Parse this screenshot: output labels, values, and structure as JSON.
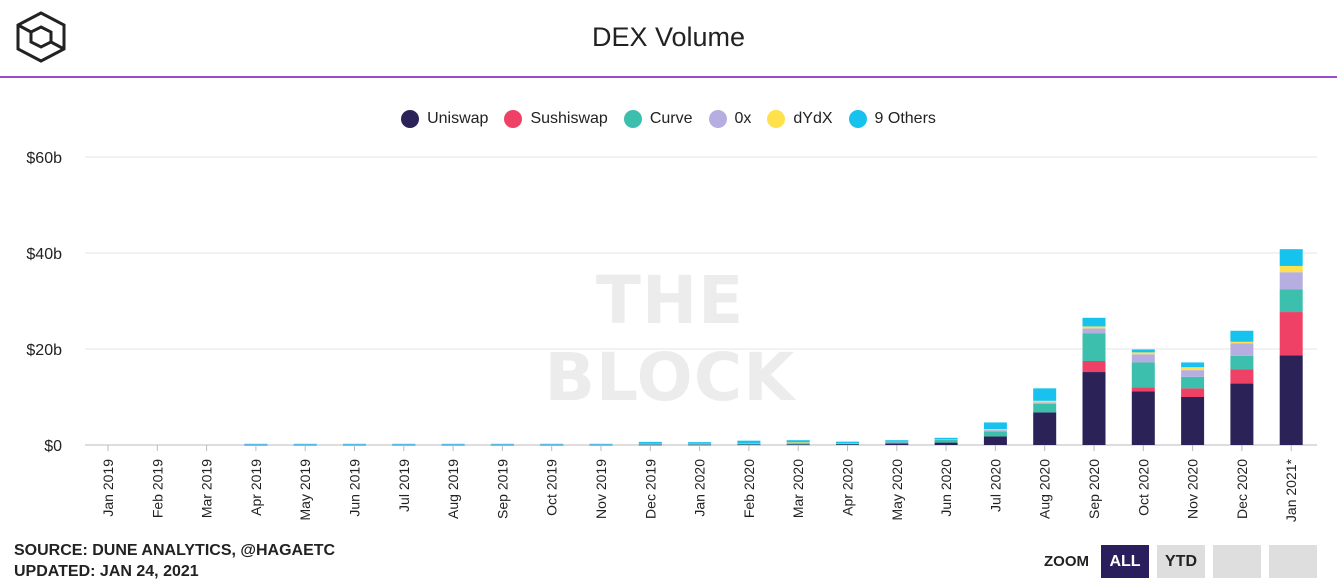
{
  "header": {
    "title": "DEX Volume",
    "logo_icon": "the-block-cube-icon"
  },
  "watermark": "THE BLOCK",
  "colors": {
    "Uniswap": "#2b2257",
    "Sushiswap": "#ef4166",
    "Curve": "#3dbfae",
    "0x": "#b6aee0",
    "dYdX": "#ffe14d",
    "9 Others": "#17c3ee",
    "accent_line": "#9b4dca"
  },
  "chart_data": {
    "type": "bar",
    "stacked": true,
    "title": "DEX Volume",
    "xlabel": "",
    "ylabel": "",
    "ylim": [
      0,
      60
    ],
    "yticks": [
      0,
      20,
      40,
      60
    ],
    "ytick_labels": [
      "$0",
      "$20b",
      "$40b",
      "$60b"
    ],
    "grid": true,
    "legend_position": "top-center",
    "categories": [
      "Jan 2019",
      "Feb 2019",
      "Mar 2019",
      "Apr 2019",
      "May 2019",
      "Jun 2019",
      "Jul 2019",
      "Aug 2019",
      "Sep 2019",
      "Oct 2019",
      "Nov 2019",
      "Dec 2019",
      "Jan 2020",
      "Feb 2020",
      "Mar 2020",
      "Apr 2020",
      "May 2020",
      "Jun 2020",
      "Jul 2020",
      "Aug 2020",
      "Sep 2020",
      "Oct 2020",
      "Nov 2020",
      "Dec 2020",
      "Jan 2021*"
    ],
    "series": [
      {
        "name": "Uniswap",
        "values": [
          0,
          0,
          0,
          0.05,
          0.05,
          0.05,
          0.05,
          0.05,
          0.05,
          0.05,
          0.05,
          0.1,
          0.1,
          0.15,
          0.15,
          0.2,
          0.3,
          0.5,
          1.8,
          6.8,
          15.2,
          11.2,
          10.0,
          12.8,
          18.7
        ]
      },
      {
        "name": "Sushiswap",
        "values": [
          0,
          0,
          0,
          0,
          0,
          0,
          0,
          0,
          0,
          0,
          0,
          0,
          0,
          0,
          0,
          0,
          0,
          0,
          0,
          0,
          2.3,
          0.8,
          1.8,
          3.0,
          9.0
        ]
      },
      {
        "name": "Curve",
        "values": [
          0,
          0,
          0,
          0.05,
          0.05,
          0.05,
          0.05,
          0.05,
          0.05,
          0.05,
          0.05,
          0.1,
          0.1,
          0.1,
          0.2,
          0.1,
          0.3,
          0.6,
          1.0,
          1.8,
          5.8,
          5.2,
          2.4,
          2.8,
          4.7
        ]
      },
      {
        "name": "0x",
        "values": [
          0,
          0,
          0,
          0.05,
          0.05,
          0.05,
          0.05,
          0.05,
          0.05,
          0.05,
          0.05,
          0.1,
          0.1,
          0.1,
          0.1,
          0.1,
          0.1,
          0.1,
          0.3,
          0.3,
          1.0,
          1.7,
          1.4,
          2.6,
          3.6
        ]
      },
      {
        "name": "dYdX",
        "values": [
          0,
          0,
          0,
          0,
          0,
          0,
          0,
          0,
          0,
          0,
          0,
          0,
          0,
          0,
          0.1,
          0,
          0,
          0,
          0.2,
          0.3,
          0.4,
          0.4,
          0.6,
          0.3,
          1.3
        ]
      },
      {
        "name": "9 Others",
        "values": [
          0,
          0,
          0,
          0.1,
          0.1,
          0.1,
          0.1,
          0.1,
          0.1,
          0.1,
          0.1,
          0.35,
          0.3,
          0.55,
          0.45,
          0.3,
          0.3,
          0.3,
          1.4,
          2.6,
          1.8,
          0.6,
          1.0,
          2.3,
          3.5
        ]
      }
    ]
  },
  "footer": {
    "source_line": "SOURCE: DUNE ANALYTICS, @HAGAETC",
    "updated_line": "UPDATED: JAN 24, 2021"
  },
  "zoom": {
    "label": "ZOOM",
    "buttons": [
      {
        "label": "ALL",
        "active": true
      },
      {
        "label": "YTD",
        "active": false
      },
      {
        "label": "",
        "active": false
      },
      {
        "label": "",
        "active": false
      }
    ]
  }
}
